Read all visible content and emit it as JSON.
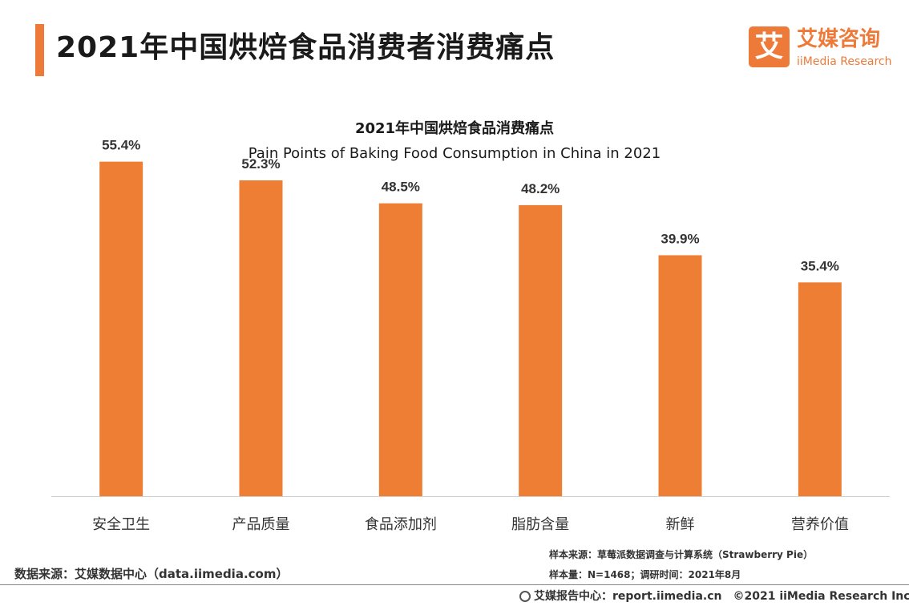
{
  "page": {
    "title": "2021年中国烘焙食品消费者消费痛点"
  },
  "logo": {
    "glyph": "艾",
    "name_cn": "艾媒咨询",
    "name_en": "iiMedia Research"
  },
  "chart_data": {
    "type": "bar",
    "title": "2021年中国烘焙食品消费痛点",
    "subtitle": "Pain Points of Baking Food Consumption in China in 2021",
    "categories": [
      "安全卫生",
      "产品质量",
      "食品添加剂",
      "脂肪含量",
      "新鲜",
      "营养价值"
    ],
    "values": [
      55.4,
      52.3,
      48.5,
      48.2,
      39.9,
      35.4
    ],
    "value_labels": [
      "55.4%",
      "52.3%",
      "48.5%",
      "48.2%",
      "39.9%",
      "35.4%"
    ],
    "ylim": [
      0,
      60
    ],
    "xlabel": "",
    "ylabel": "",
    "grid": false,
    "bar_color": "#ee7e33"
  },
  "notes": {
    "source": "数据来源：艾媒数据中心（data.iimedia.com）",
    "sample_source": "样本来源：草莓派数据调查与计算系统（Strawberry Pie）",
    "sample_size": "样本量：N=1468；调研时间：2021年8月"
  },
  "footer": {
    "text": "艾媒报告中心：report.iimedia.cn　©2021  iiMedia Research  Inc"
  },
  "colors": {
    "accent": "#ee7a3a"
  }
}
